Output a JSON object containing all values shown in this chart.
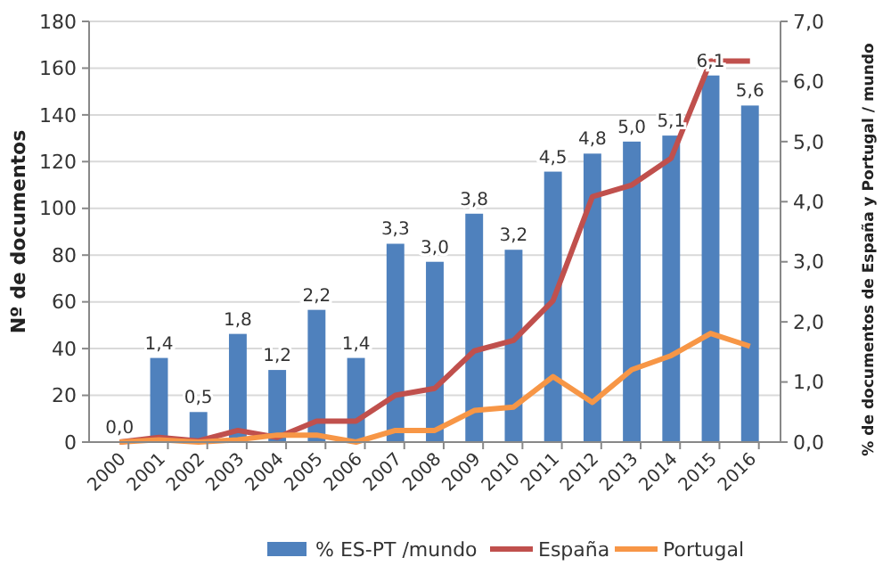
{
  "chart_data": {
    "type": "bar",
    "categories": [
      "2000",
      "2001",
      "2002",
      "2003",
      "2004",
      "2005",
      "2006",
      "2007",
      "2008",
      "2009",
      "2010",
      "2011",
      "2012",
      "2013",
      "2014",
      "2015",
      "2016"
    ],
    "series": [
      {
        "name": "% ES-PT /mundo",
        "axis": "y2",
        "color": "#4f81bd",
        "values": [
          0.0,
          1.4,
          0.5,
          1.8,
          1.2,
          2.2,
          1.4,
          3.3,
          3.0,
          3.8,
          3.2,
          4.5,
          4.8,
          5.0,
          5.1,
          6.1,
          5.6
        ],
        "value_labels": [
          "0,0",
          "1,4",
          "0,5",
          "1,8",
          "1,2",
          "2,2",
          "1,4",
          "3,3",
          "3,0",
          "3,8",
          "3,2",
          "4,5",
          "4,8",
          "5,0",
          "5,1",
          "6,1",
          "5,6"
        ]
      },
      {
        "name": "España",
        "type": "line",
        "color": "#c0504d",
        "values": [
          0,
          2,
          0.5,
          5,
          2,
          9,
          9,
          20,
          23,
          39,
          43.5,
          60.5,
          105,
          110,
          121.5,
          163,
          163
        ]
      },
      {
        "name": "Portugal",
        "type": "line",
        "color": "#f79646",
        "values": [
          0,
          1,
          0,
          1,
          3,
          3,
          0,
          5,
          5,
          13.5,
          15,
          28,
          17,
          31,
          37,
          46.5,
          41
        ]
      }
    ],
    "ylabel": "Nº de documentos",
    "y2label": "% de documentos de España  y Portugal / mundo",
    "ylim": [
      0,
      180
    ],
    "yticks": [
      0,
      20,
      40,
      60,
      80,
      100,
      120,
      140,
      160,
      180
    ],
    "y2lim": [
      0,
      7
    ],
    "y2ticks": [
      {
        "value": 0,
        "label": "0,0"
      },
      {
        "value": 1,
        "label": "1,0"
      },
      {
        "value": 2,
        "label": "2,0"
      },
      {
        "value": 3,
        "label": "3,0"
      },
      {
        "value": 4,
        "label": "4,0"
      },
      {
        "value": 5,
        "label": "5,0"
      },
      {
        "value": 6,
        "label": "6,0"
      },
      {
        "value": 7,
        "label": "7,0"
      }
    ],
    "grid": "y",
    "legend": "bottom",
    "marker": "none",
    "line_style": "solid"
  }
}
